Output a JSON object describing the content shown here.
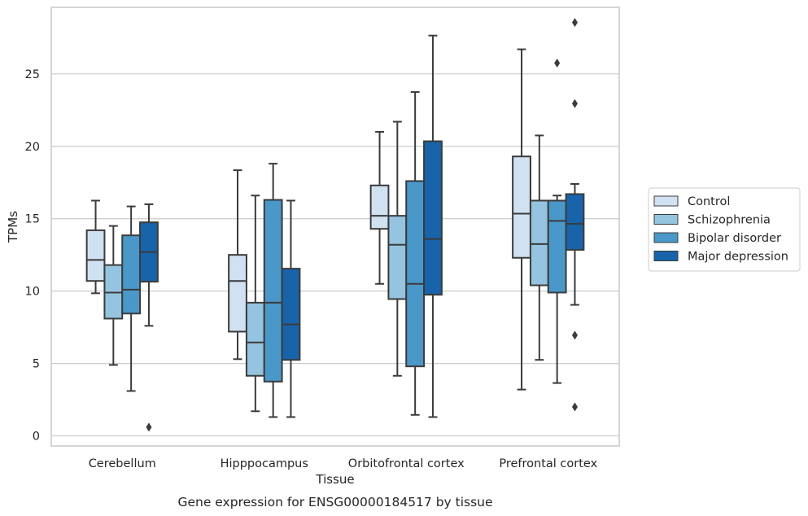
{
  "chart_data": {
    "type": "box",
    "title": "",
    "caption": "Gene expression for ENSG00000184517 by tissue",
    "xlabel": "Tissue",
    "ylabel": "TPMs",
    "ylim": [
      -0.7,
      29.6
    ],
    "yticks": [
      0,
      5,
      10,
      15,
      20,
      25
    ],
    "grid": "horizontal",
    "legend_placement": "right",
    "categories": [
      "Cerebellum",
      "Hipppocampus",
      "Orbitofrontal cortex",
      "Prefrontal cortex"
    ],
    "series": [
      {
        "name": "Control",
        "color": "#d0e1f2",
        "boxes": [
          {
            "q1": 10.7,
            "median": 12.15,
            "q3": 14.2,
            "whisker_low": 9.85,
            "whisker_high": 16.25,
            "outliers": []
          },
          {
            "q1": 7.2,
            "median": 10.7,
            "q3": 12.5,
            "whisker_low": 5.3,
            "whisker_high": 18.35,
            "outliers": []
          },
          {
            "q1": 14.3,
            "median": 15.2,
            "q3": 17.3,
            "whisker_low": 10.5,
            "whisker_high": 21.0,
            "outliers": []
          },
          {
            "q1": 12.3,
            "median": 15.35,
            "q3": 19.3,
            "whisker_low": 3.2,
            "whisker_high": 26.7,
            "outliers": []
          }
        ]
      },
      {
        "name": "Schizophrenia",
        "color": "#94c4df",
        "boxes": [
          {
            "q1": 8.1,
            "median": 9.9,
            "q3": 11.8,
            "whisker_low": 4.9,
            "whisker_high": 14.5,
            "outliers": []
          },
          {
            "q1": 4.15,
            "median": 6.45,
            "q3": 9.2,
            "whisker_low": 1.7,
            "whisker_high": 16.6,
            "outliers": []
          },
          {
            "q1": 9.45,
            "median": 13.2,
            "q3": 15.2,
            "whisker_low": 4.15,
            "whisker_high": 21.7,
            "outliers": []
          },
          {
            "q1": 10.4,
            "median": 13.25,
            "q3": 16.25,
            "whisker_low": 5.25,
            "whisker_high": 20.75,
            "outliers": []
          }
        ]
      },
      {
        "name": "Bipolar disorder",
        "color": "#4a98c9",
        "boxes": [
          {
            "q1": 8.45,
            "median": 10.1,
            "q3": 13.85,
            "whisker_low": 3.1,
            "whisker_high": 15.85,
            "outliers": []
          },
          {
            "q1": 3.75,
            "median": 9.2,
            "q3": 16.3,
            "whisker_low": 1.3,
            "whisker_high": 18.8,
            "outliers": []
          },
          {
            "q1": 4.8,
            "median": 10.5,
            "q3": 17.6,
            "whisker_low": 1.45,
            "whisker_high": 23.75,
            "outliers": []
          },
          {
            "q1": 9.9,
            "median": 14.85,
            "q3": 16.25,
            "whisker_low": 3.65,
            "whisker_high": 16.6,
            "outliers": [
              25.75
            ]
          }
        ]
      },
      {
        "name": "Major depression",
        "color": "#1764ab",
        "boxes": [
          {
            "q1": 10.65,
            "median": 12.7,
            "q3": 14.75,
            "whisker_low": 7.6,
            "whisker_high": 16.0,
            "outliers": [
              0.6
            ]
          },
          {
            "q1": 5.25,
            "median": 7.7,
            "q3": 11.55,
            "whisker_low": 1.3,
            "whisker_high": 16.25,
            "outliers": []
          },
          {
            "q1": 9.75,
            "median": 13.6,
            "q3": 20.35,
            "whisker_low": 1.3,
            "whisker_high": 27.65,
            "outliers": []
          },
          {
            "q1": 12.85,
            "median": 14.65,
            "q3": 16.7,
            "whisker_low": 9.05,
            "whisker_high": 17.4,
            "outliers": [
              28.55,
              22.95,
              6.95,
              2.0
            ]
          }
        ]
      }
    ]
  }
}
